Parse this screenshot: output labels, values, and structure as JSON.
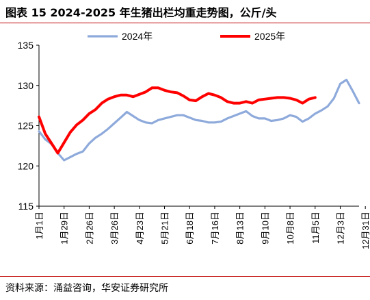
{
  "title": "图表 15 2024-2025 年生猪出栏均重走势图，公斤/头",
  "source": "资料来源：涌益咨询，华安证券研究所",
  "chart_data": {
    "type": "line",
    "title": "",
    "xlabel": "",
    "ylabel": "",
    "ylim": [
      115,
      135
    ],
    "yticks": [
      115,
      120,
      125,
      130,
      135
    ],
    "xticks": [
      "1月1日",
      "1月29日",
      "2月26日",
      "3月26日",
      "4月23日",
      "5月21日",
      "6月18日",
      "7月16日",
      "8月13日",
      "9月10日",
      "10月8日",
      "11月5日",
      "12月3日",
      "12月31日"
    ],
    "legend_position": "top",
    "series": [
      {
        "name": "2024年",
        "color": "#8eaadb",
        "values": [
          124.3,
          123.3,
          122.7,
          121.6,
          120.7,
          121.1,
          121.5,
          121.8,
          122.8,
          123.5,
          124.0,
          124.6,
          125.3,
          126.0,
          126.7,
          126.2,
          125.7,
          125.4,
          125.3,
          125.7,
          125.9,
          126.1,
          126.3,
          126.3,
          126.0,
          125.7,
          125.6,
          125.4,
          125.4,
          125.5,
          125.9,
          126.2,
          126.5,
          126.8,
          126.2,
          125.9,
          125.9,
          125.6,
          125.7,
          125.9,
          126.3,
          126.1,
          125.5,
          125.9,
          126.5,
          126.9,
          127.4,
          128.4,
          130.2,
          130.7,
          129.3,
          127.8
        ]
      },
      {
        "name": "2025年",
        "color": "#ff0000",
        "values": [
          126.1,
          124.0,
          122.8,
          121.6,
          122.9,
          124.2,
          125.1,
          125.7,
          126.5,
          127.0,
          127.8,
          128.3,
          128.6,
          128.8,
          128.8,
          128.6,
          128.9,
          129.2,
          129.7,
          129.7,
          129.4,
          129.2,
          129.1,
          128.7,
          128.2,
          128.1,
          128.6,
          129.0,
          128.8,
          128.5,
          128.0,
          127.8,
          127.8,
          128.0,
          127.8,
          128.2,
          128.3,
          128.4,
          128.5,
          128.5,
          128.4,
          128.2,
          127.8,
          128.3,
          128.5
        ]
      }
    ]
  }
}
